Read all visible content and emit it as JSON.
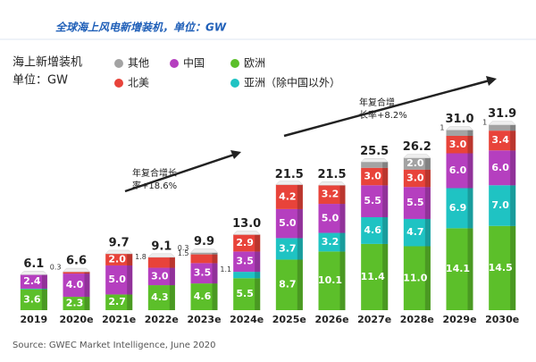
{
  "chart_data": {
    "type": "bar",
    "stacked": true,
    "title": "全球海上风电新增装机，单位：GW",
    "legend_title": [
      "海上新增装机",
      "单位：GW"
    ],
    "annotations": [
      [
        "年复合增长",
        "率+18.6%"
      ],
      [
        "年复合增",
        "长率+8.2%"
      ]
    ],
    "source": "Source: GWEC Market Intelligence, June 2020",
    "categories": [
      "2019",
      "2020e",
      "2021e",
      "2022e",
      "2023e",
      "2024e",
      "2025e",
      "2026e",
      "2027e",
      "2028e",
      "2029e",
      "2030e"
    ],
    "ylim": [
      0,
      34
    ],
    "series": [
      {
        "name": "欧洲",
        "color": "#5cbf2a",
        "values": [
          3.6,
          2.3,
          2.7,
          4.3,
          4.6,
          5.5,
          8.7,
          10.1,
          11.4,
          11.0,
          14.1,
          14.5
        ],
        "value_labels": [
          "3.6",
          "2.3",
          "2.7",
          "4.3",
          "4.6",
          "5.5",
          "8.7",
          "10.1",
          "11.4",
          "11.0",
          "14.1",
          "14.5"
        ]
      },
      {
        "name": "亚洲（除中国以外）",
        "color": "#1fc3c3",
        "values": [
          0.1,
          null,
          null,
          null,
          null,
          1.1,
          3.7,
          3.2,
          4.6,
          4.7,
          6.9,
          7.0
        ],
        "value_labels": [
          null,
          null,
          null,
          null,
          null,
          "1.1",
          "3.7",
          "3.2",
          "4.6",
          "4.7",
          "6.9",
          "7.0"
        ]
      },
      {
        "name": "中国",
        "color": "#b53fbf",
        "values": [
          2.4,
          4.0,
          5.0,
          3.0,
          3.5,
          3.5,
          5.0,
          5.0,
          5.5,
          5.5,
          6.0,
          6.0
        ],
        "value_labels": [
          "2.4",
          "4.0",
          "5.0",
          "3.0",
          "3.5",
          "3.5",
          "5.0",
          "5.0",
          "5.5",
          "5.5",
          "6.0",
          "6.0"
        ]
      },
      {
        "name": "北美",
        "color": "#e8433a",
        "values": [
          null,
          0.3,
          2.0,
          1.8,
          1.5,
          2.9,
          4.2,
          3.2,
          3.0,
          3.0,
          3.0,
          3.4
        ],
        "value_labels": [
          null,
          "0.3",
          "2.0",
          "1.8",
          "1.5",
          "2.9",
          "4.2",
          "3.2",
          "3.0",
          "3.0",
          "3.0",
          "3.4"
        ]
      },
      {
        "name": "其他",
        "color": "#a3a3a3",
        "values": [
          null,
          null,
          null,
          null,
          0.3,
          null,
          null,
          null,
          1.0,
          2.0,
          1,
          1
        ],
        "value_labels": [
          null,
          null,
          null,
          null,
          "0.3",
          null,
          null,
          null,
          null,
          "2.0",
          "1",
          "1"
        ]
      }
    ],
    "totals": {
      "values": [
        6.1,
        6.6,
        9.7,
        9.1,
        9.9,
        13.0,
        21.5,
        21.5,
        25.5,
        26.2,
        31.0,
        31.9
      ],
      "value_labels": [
        "6.1",
        "6.6",
        "9.7",
        "9.1",
        "9.9",
        "13.0",
        "21.5",
        "21.5",
        "25.5",
        "26.2",
        "31.0",
        "31.9"
      ]
    }
  }
}
